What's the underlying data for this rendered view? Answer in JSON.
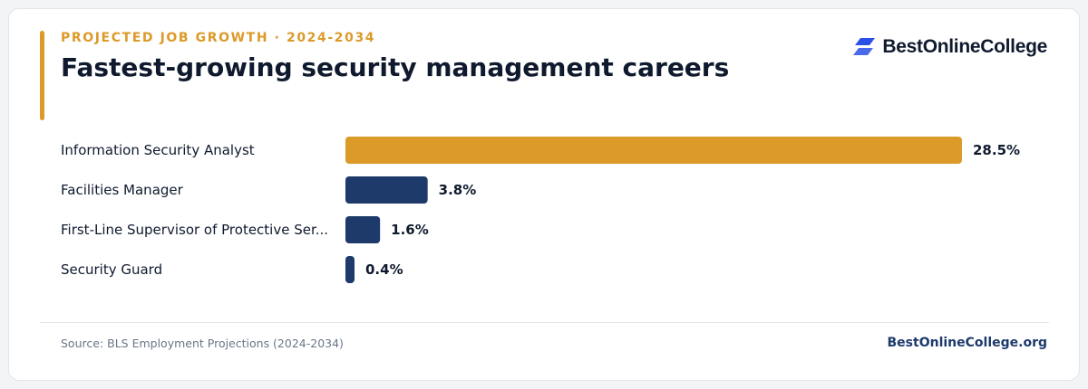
{
  "header": {
    "eyebrow": "PROJECTED JOB GROWTH · 2024-2034",
    "title": "Fastest-growing security management careers"
  },
  "brand": {
    "logo_text": "BestOnlineCollege",
    "logo_icon": "stacked-parallelogram-logo-icon",
    "logo_color": "#2b50e8"
  },
  "colors": {
    "highlight": "#dc9a28",
    "default": "#1d3a6b",
    "text": "#0f1a2e"
  },
  "chart_data": {
    "type": "bar",
    "orientation": "horizontal",
    "categories": [
      "Information Security Analyst",
      "Facilities Manager",
      "First-Line Supervisor of Protective Ser...",
      "Security Guard"
    ],
    "values": [
      28.5,
      3.8,
      1.6,
      0.4
    ],
    "value_labels": [
      "28.5%",
      "3.8%",
      "1.6%",
      "0.4%"
    ],
    "highlight_index": 0,
    "unit": "%",
    "xlim": [
      0,
      28.5
    ],
    "grid": false,
    "legend": "none"
  },
  "footer": {
    "source": "Source: BLS Employment Projections (2024-2034)",
    "brand": "BestOnlineCollege.org"
  }
}
